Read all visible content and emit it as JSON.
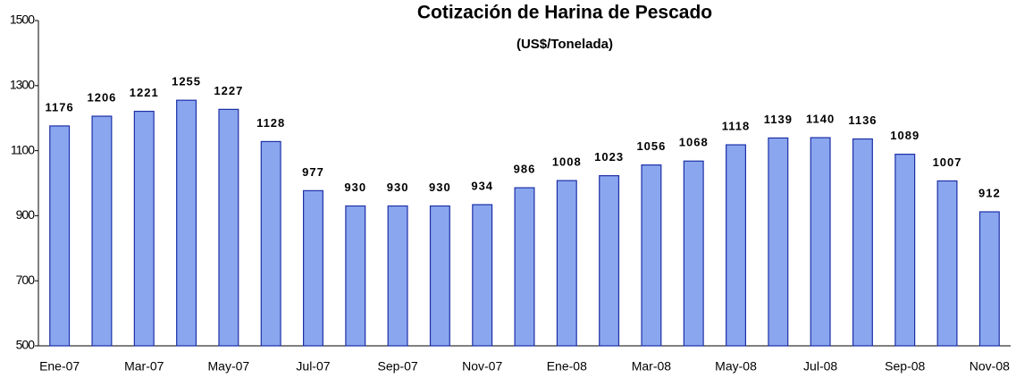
{
  "chart_data": {
    "type": "bar",
    "title": "Cotización de Harina de Pescado",
    "subtitle": "(US$/Tonelada)",
    "categories": [
      "Ene-07",
      null,
      "Mar-07",
      null,
      "May-07",
      null,
      "Jul-07",
      null,
      "Sep-07",
      null,
      "Nov-07",
      null,
      "Ene-08",
      null,
      "Mar-08",
      null,
      "May-08",
      null,
      "Jul-08",
      null,
      "Sep-08",
      null,
      "Nov-08"
    ],
    "values": [
      1176,
      1206,
      1221,
      1255,
      1227,
      1128,
      977,
      930,
      930,
      930,
      934,
      986,
      1008,
      1023,
      1056,
      1068,
      1118,
      1139,
      1140,
      1136,
      1089,
      1007,
      912
    ],
    "color": "#8aa6ee",
    "ylim": [
      500,
      1500
    ],
    "yticks": [
      500,
      700,
      900,
      1100,
      1300,
      1500
    ],
    "grid": false
  }
}
